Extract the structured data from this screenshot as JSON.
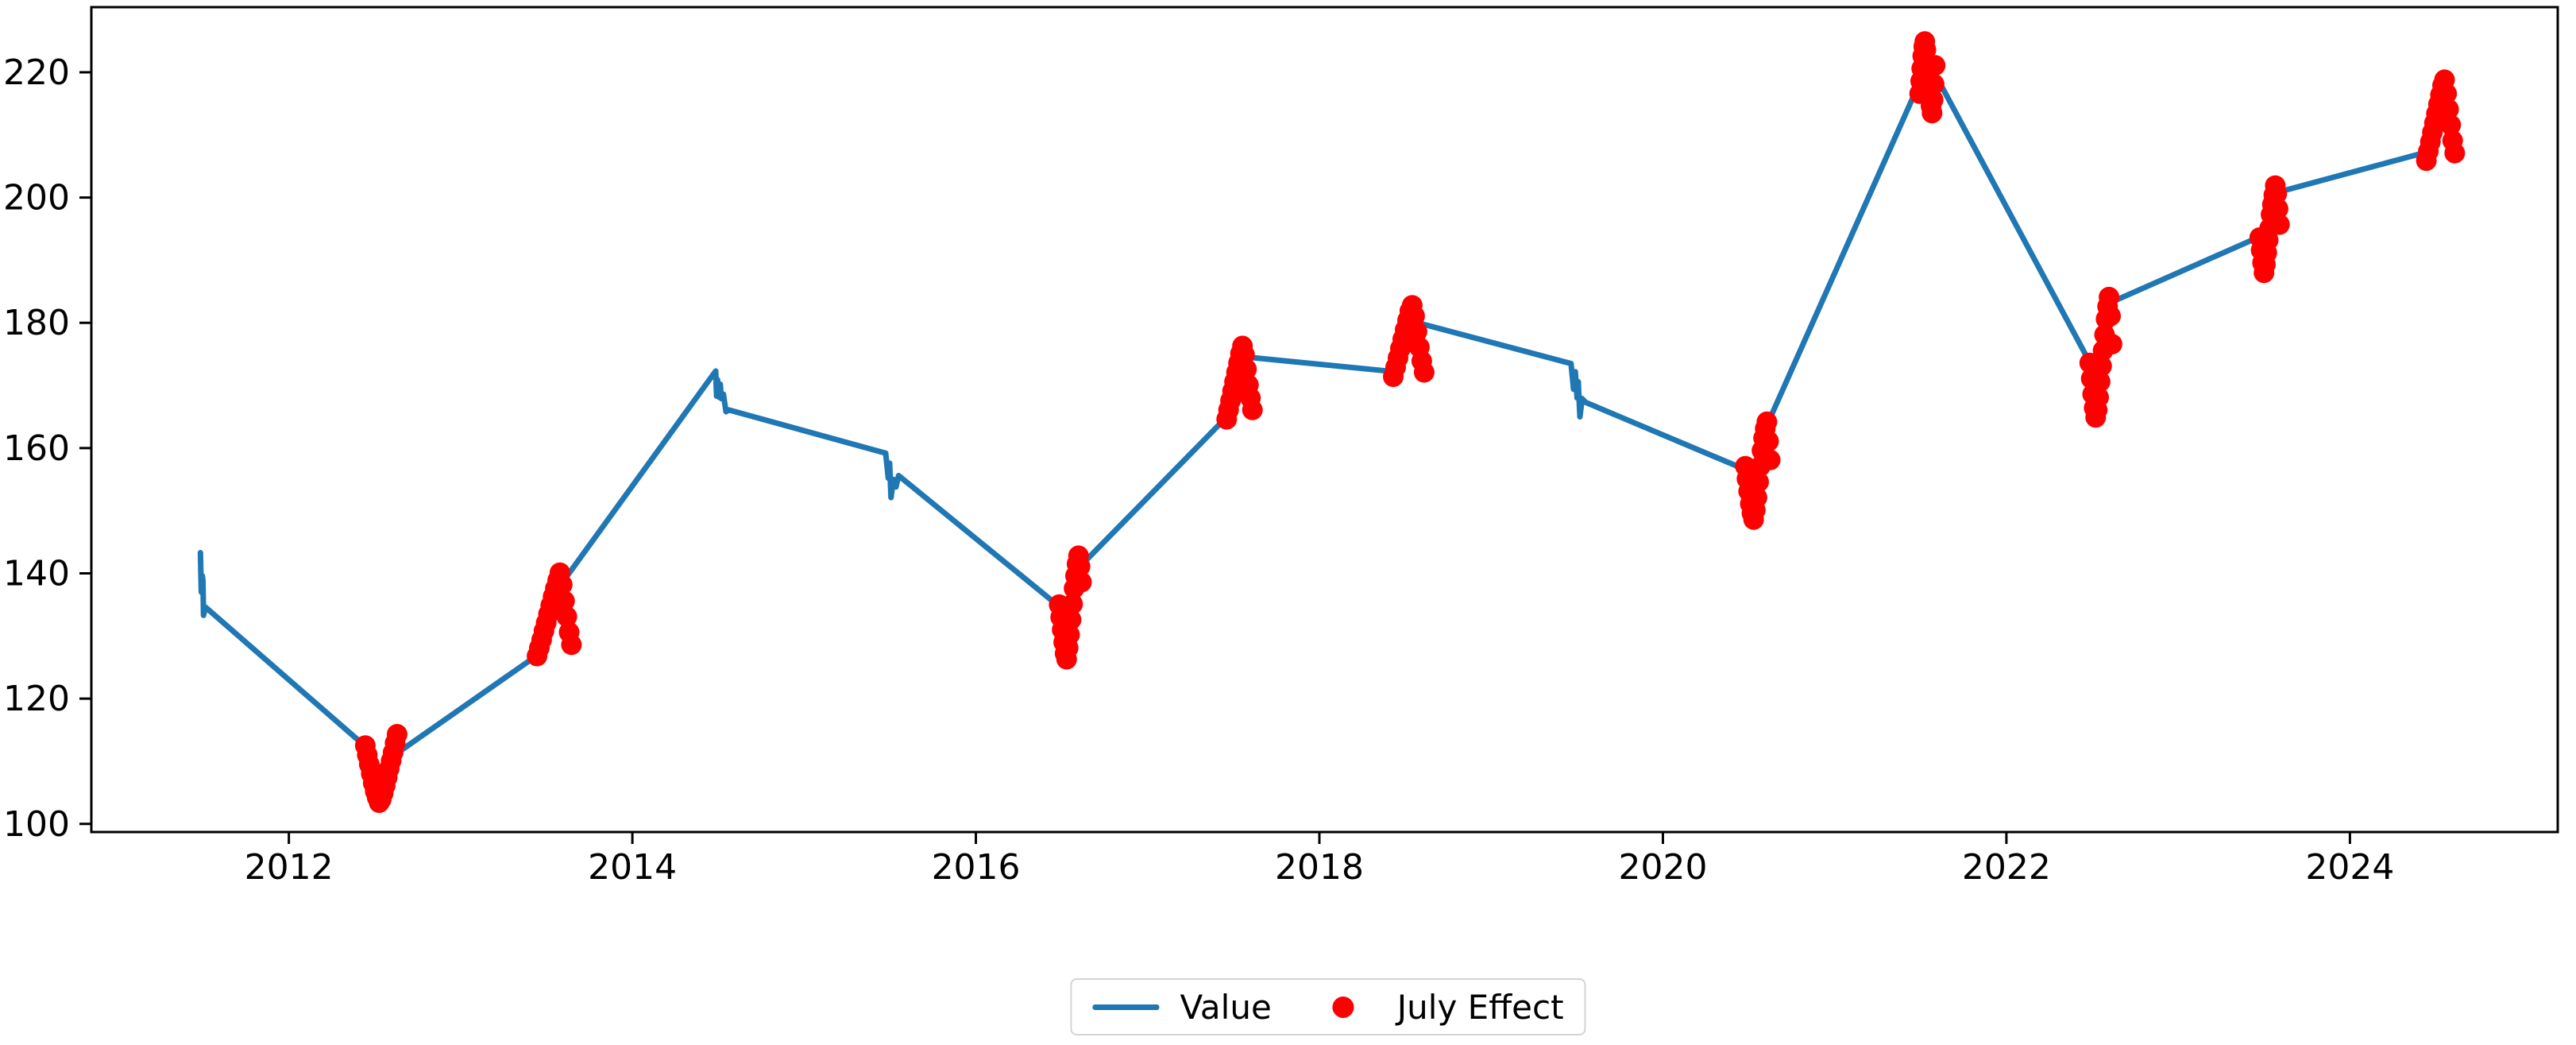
{
  "chart_data": {
    "type": "line",
    "title": "",
    "xlabel": "",
    "ylabel": "",
    "grid": false,
    "x_ticks": [
      2012,
      2014,
      2016,
      2018,
      2020,
      2022,
      2024
    ],
    "y_ticks": [
      100,
      120,
      140,
      160,
      180,
      200,
      220
    ],
    "xlim": [
      2010.85,
      2025.21
    ],
    "ylim": [
      98.7,
      230.4
    ],
    "legend_position": "lower center outside axes",
    "series": [
      {
        "name": "Value",
        "type": "line",
        "color": "#1f77b4",
        "points": [
          [
            2011.485,
            143.3
          ],
          [
            2011.49,
            137.0
          ],
          [
            2011.496,
            139.6
          ],
          [
            2011.5,
            138.9
          ],
          [
            2011.503,
            133.3
          ],
          [
            2011.515,
            134.6
          ],
          [
            2012.44,
            112.5
          ],
          [
            2012.46,
            110.8
          ],
          [
            2012.475,
            105.6
          ],
          [
            2012.49,
            107.0
          ],
          [
            2012.505,
            104.2
          ],
          [
            2012.52,
            105.3
          ],
          [
            2012.535,
            103.9
          ],
          [
            2012.55,
            106.0
          ],
          [
            2012.565,
            104.9
          ],
          [
            2012.58,
            107.8
          ],
          [
            2012.6,
            109.4
          ],
          [
            2012.625,
            111.2
          ],
          [
            2013.445,
            126.9
          ],
          [
            2013.46,
            128.4
          ],
          [
            2013.475,
            131.8
          ],
          [
            2013.49,
            130.2
          ],
          [
            2013.505,
            133.6
          ],
          [
            2013.52,
            132.4
          ],
          [
            2013.535,
            135.9
          ],
          [
            2013.55,
            134.8
          ],
          [
            2013.565,
            137.9
          ],
          [
            2013.585,
            139.9
          ],
          [
            2013.61,
            139.2
          ],
          [
            2014.485,
            172.3
          ],
          [
            2014.49,
            168.3
          ],
          [
            2014.496,
            170.9
          ],
          [
            2014.505,
            168.1
          ],
          [
            2014.512,
            170.2
          ],
          [
            2014.518,
            167.9
          ],
          [
            2014.53,
            168.6
          ],
          [
            2014.545,
            165.8
          ],
          [
            2014.56,
            166.1
          ],
          [
            2015.475,
            159.2
          ],
          [
            2015.49,
            155.2
          ],
          [
            2015.498,
            157.6
          ],
          [
            2015.506,
            152.1
          ],
          [
            2015.52,
            155.0
          ],
          [
            2015.535,
            153.8
          ],
          [
            2015.55,
            155.6
          ],
          [
            2016.49,
            134.6
          ],
          [
            2016.5,
            131.5
          ],
          [
            2016.51,
            128.4
          ],
          [
            2016.517,
            126.8
          ],
          [
            2016.527,
            130.4
          ],
          [
            2016.537,
            128.9
          ],
          [
            2016.55,
            133.4
          ],
          [
            2016.565,
            136.8
          ],
          [
            2016.58,
            140.0
          ],
          [
            2016.595,
            142.2
          ],
          [
            2016.61,
            141.2
          ],
          [
            2017.465,
            165.1
          ],
          [
            2017.48,
            167.3
          ],
          [
            2017.495,
            169.8
          ],
          [
            2017.507,
            168.6
          ],
          [
            2017.52,
            171.3
          ],
          [
            2017.535,
            170.1
          ],
          [
            2017.55,
            172.9
          ],
          [
            2017.567,
            174.6
          ],
          [
            2017.59,
            174.5
          ],
          [
            2018.435,
            172.2
          ],
          [
            2018.45,
            173.9
          ],
          [
            2018.465,
            176.4
          ],
          [
            2018.477,
            174.9
          ],
          [
            2018.49,
            177.3
          ],
          [
            2018.505,
            176.1
          ],
          [
            2018.52,
            178.6
          ],
          [
            2018.535,
            177.4
          ],
          [
            2018.55,
            180.3
          ],
          [
            2018.575,
            180.9
          ],
          [
            2018.6,
            179.8
          ],
          [
            2019.465,
            173.5
          ],
          [
            2019.48,
            169.4
          ],
          [
            2019.49,
            172.2
          ],
          [
            2019.5,
            168.0
          ],
          [
            2019.507,
            170.6
          ],
          [
            2019.517,
            165.0
          ],
          [
            2019.53,
            167.9
          ],
          [
            2019.55,
            167.3
          ],
          [
            2020.485,
            156.5
          ],
          [
            2020.5,
            153.0
          ],
          [
            2020.512,
            150.2
          ],
          [
            2020.522,
            152.8
          ],
          [
            2020.532,
            148.9
          ],
          [
            2020.547,
            151.6
          ],
          [
            2020.562,
            155.4
          ],
          [
            2020.577,
            158.9
          ],
          [
            2020.59,
            161.7
          ],
          [
            2020.605,
            163.6
          ],
          [
            2021.5,
            218.7
          ],
          [
            2021.51,
            223.4
          ],
          [
            2021.517,
            219.2
          ],
          [
            2021.527,
            224.4
          ],
          [
            2021.537,
            220.3
          ],
          [
            2021.547,
            222.9
          ],
          [
            2021.553,
            217.0
          ],
          [
            2021.558,
            213.8
          ],
          [
            2021.567,
            218.4
          ],
          [
            2021.577,
            220.1
          ],
          [
            2022.495,
            173.2
          ],
          [
            2022.507,
            169.6
          ],
          [
            2022.517,
            166.8
          ],
          [
            2022.527,
            169.3
          ],
          [
            2022.537,
            165.3
          ],
          [
            2022.552,
            168.3
          ],
          [
            2022.567,
            172.4
          ],
          [
            2022.582,
            176.9
          ],
          [
            2022.597,
            180.7
          ],
          [
            2022.612,
            183.3
          ],
          [
            2023.487,
            193.9
          ],
          [
            2023.497,
            190.8
          ],
          [
            2023.507,
            188.4
          ],
          [
            2023.517,
            191.3
          ],
          [
            2023.527,
            189.6
          ],
          [
            2023.542,
            193.3
          ],
          [
            2023.557,
            196.8
          ],
          [
            2023.572,
            199.9
          ],
          [
            2023.587,
            200.9
          ],
          [
            2024.465,
            207.4
          ],
          [
            2024.475,
            209.9
          ],
          [
            2024.487,
            208.3
          ],
          [
            2024.497,
            211.8
          ],
          [
            2024.507,
            210.6
          ],
          [
            2024.517,
            213.9
          ],
          [
            2024.527,
            212.4
          ],
          [
            2024.537,
            215.9
          ],
          [
            2024.547,
            217.5
          ],
          [
            2024.557,
            215.2
          ]
        ]
      },
      {
        "name": "July Effect",
        "type": "scatter",
        "color": "#ff0000",
        "marker": "circle",
        "clusters": [
          {
            "year_start": 2012.445,
            "year_end": 2012.63,
            "values": [
              112.5,
              111.0,
              109.5,
              108.0,
              106.5,
              105.2,
              104.2,
              103.4,
              103.9,
              104.9,
              106.1,
              107.4,
              108.8,
              110.1,
              111.4,
              112.9,
              114.3
            ]
          },
          {
            "year_start": 2013.445,
            "year_end": 2013.645,
            "values": [
              126.8,
              128.1,
              129.4,
              130.8,
              132.1,
              133.5,
              134.9,
              136.3,
              137.6,
              138.9,
              140.1,
              138.2,
              135.6,
              133.1,
              130.6,
              128.6
            ]
          },
          {
            "year_start": 2016.485,
            "year_end": 2016.615,
            "values": [
              135.0,
              133.0,
              131.0,
              129.0,
              127.2,
              126.3,
              128.1,
              130.2,
              132.6,
              135.1,
              137.6,
              139.6,
              141.5,
              142.8,
              141.1,
              138.6
            ]
          },
          {
            "year_start": 2017.46,
            "year_end": 2017.61,
            "values": [
              164.6,
              166.1,
              167.6,
              169.1,
              170.6,
              172.1,
              173.6,
              175.1,
              176.3,
              174.9,
              172.6,
              170.1,
              168.0,
              166.1
            ]
          },
          {
            "year_start": 2018.43,
            "year_end": 2018.61,
            "values": [
              171.4,
              172.9,
              174.4,
              175.9,
              177.4,
              178.9,
              180.4,
              181.9,
              182.8,
              181.1,
              178.6,
              176.1,
              173.9,
              172.1
            ]
          },
          {
            "year_start": 2020.48,
            "year_end": 2020.625,
            "values": [
              157.1,
              155.1,
              153.1,
              151.1,
              149.6,
              148.6,
              150.1,
              152.1,
              154.6,
              157.1,
              159.6,
              161.6,
              163.1,
              164.2,
              161.1,
              158.1
            ]
          },
          {
            "year_start": 2021.495,
            "year_end": 2021.585,
            "values": [
              216.6,
              218.6,
              220.6,
              222.6,
              224.1,
              224.9,
              223.6,
              221.6,
              219.6,
              217.9,
              216.1,
              214.6,
              213.5,
              215.6,
              218.1,
              221.1
            ]
          },
          {
            "year_start": 2022.485,
            "year_end": 2022.615,
            "values": [
              173.6,
              171.1,
              168.6,
              166.4,
              164.9,
              166.1,
              168.1,
              170.6,
              173.1,
              175.6,
              178.1,
              180.6,
              182.6,
              184.1,
              181.1,
              176.6
            ]
          },
          {
            "year_start": 2023.475,
            "year_end": 2023.59,
            "values": [
              193.6,
              191.6,
              189.6,
              188.0,
              189.3,
              191.2,
              193.2,
              195.1,
              197.3,
              198.9,
              200.4,
              201.9,
              200.6,
              198.2,
              195.7
            ]
          },
          {
            "year_start": 2024.445,
            "year_end": 2024.61,
            "values": [
              205.9,
              207.4,
              208.9,
              210.4,
              211.9,
              213.4,
              214.9,
              216.4,
              217.9,
              218.8,
              216.6,
              214.1,
              211.6,
              209.1,
              207.1
            ]
          }
        ]
      }
    ]
  },
  "legend": {
    "entries": [
      {
        "label": "Value",
        "color": "#1f77b4",
        "marker": "line"
      },
      {
        "label": "July Effect",
        "color": "#ff0000",
        "marker": "dot"
      }
    ]
  },
  "axes_style": {
    "spine_color": "#000000",
    "tick_color": "#000000",
    "label_color": "#000000",
    "background": "#ffffff"
  }
}
